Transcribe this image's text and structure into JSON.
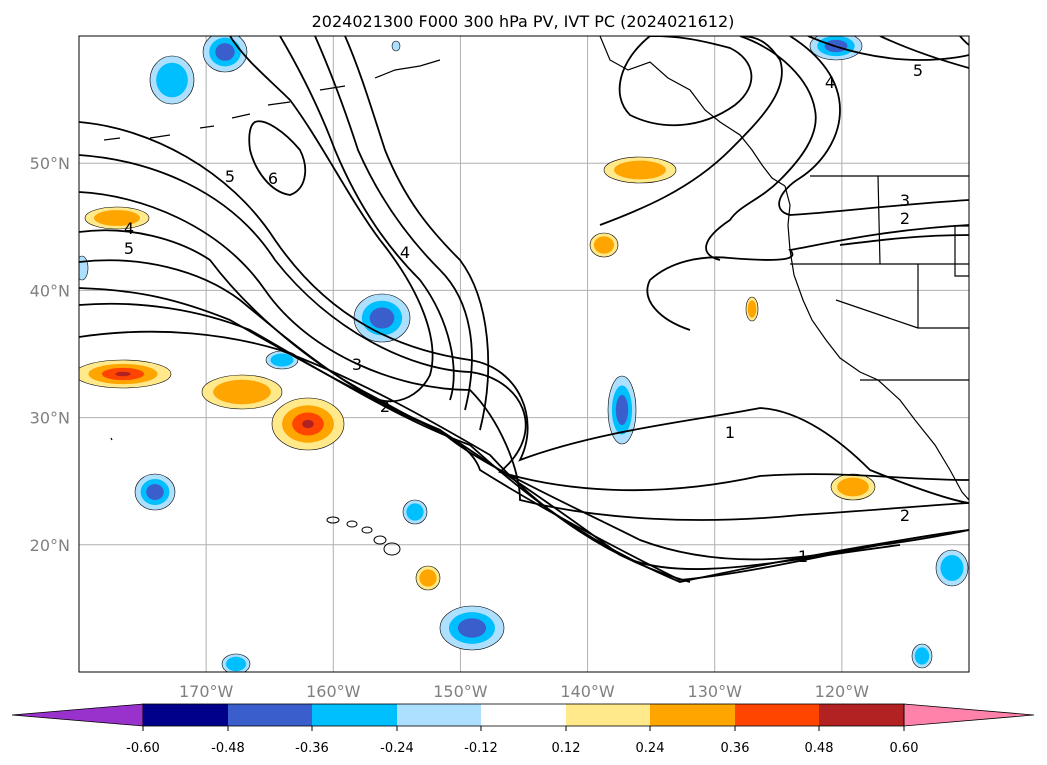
{
  "chart_data": {
    "type": "contour",
    "title": "2024021300 F000 300 hPa PV, IVT PC (2024021612)",
    "map_extent": {
      "lon": [
        -180,
        -110
      ],
      "lat": [
        10,
        60
      ]
    },
    "grid": true,
    "lon_ticks": [
      "170°W",
      "160°W",
      "150°W",
      "140°W",
      "130°W",
      "120°W"
    ],
    "lat_ticks": [
      "50°N",
      "40°N",
      "30°N",
      "20°N"
    ],
    "pv_contour_labels": [
      "1",
      "1",
      "2",
      "2",
      "2",
      "3",
      "3",
      "4",
      "4",
      "4",
      "5",
      "5",
      "5",
      "6"
    ],
    "colorbar": {
      "ticks": [
        "-0.60",
        "-0.48",
        "-0.36",
        "-0.24",
        "-0.12",
        "0.12",
        "0.24",
        "0.36",
        "0.48",
        "0.60"
      ],
      "extend": "both",
      "colors": [
        "#9932CC",
        "#00008B",
        "#3A5FCD",
        "#00BFFF",
        "#ADDFFF",
        "#FFFFFF",
        "#FFE98A",
        "#FFA500",
        "#FF4500",
        "#B22222",
        "#FF82AB"
      ]
    }
  }
}
